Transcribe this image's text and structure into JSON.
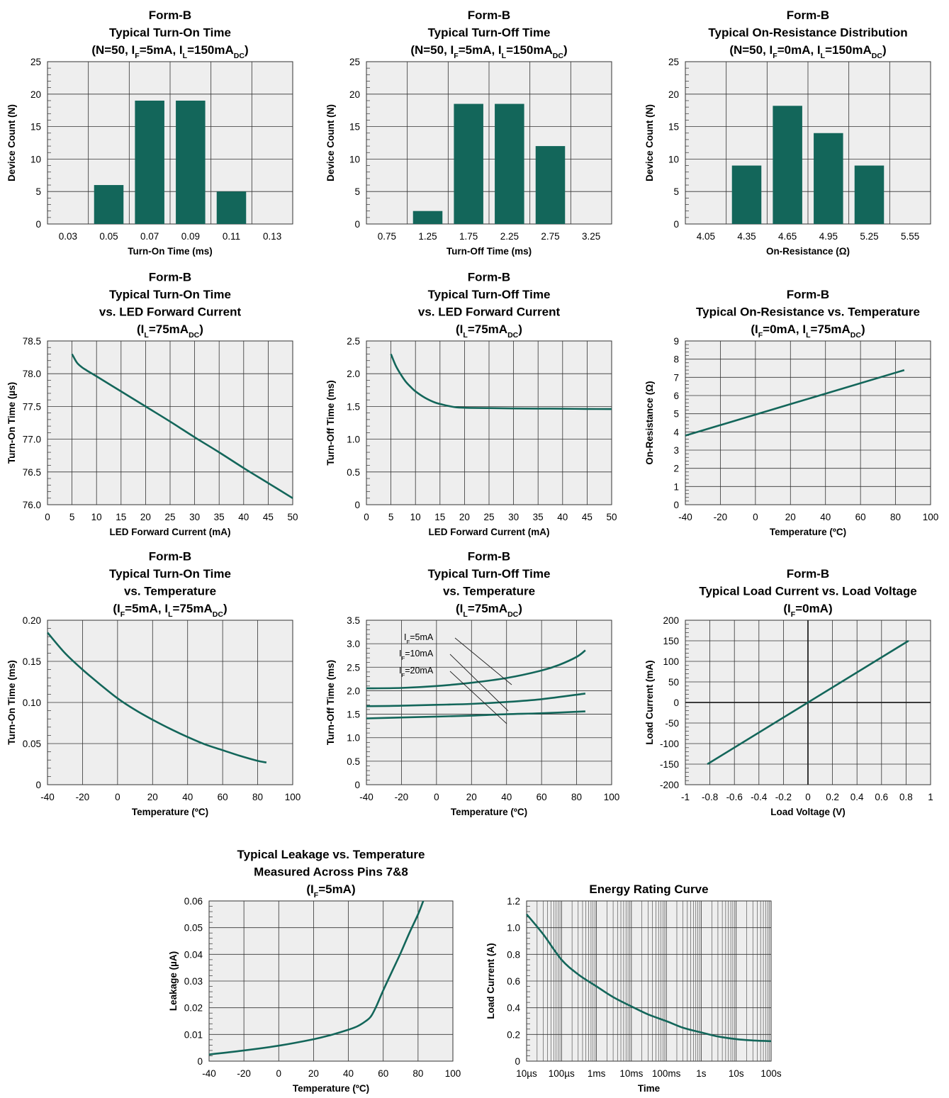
{
  "chart_data": [
    {
      "id": "c1",
      "type": "bar",
      "title": [
        "Form-B",
        "Typical Turn-On Time",
        "(N=50, I|F|=5mA, I|L|=150mA|DC|)"
      ],
      "xlabel": "Turn-On Time (ms)",
      "ylabel": "Device Count (N)",
      "categories": [
        "0.03",
        "0.05",
        "0.07",
        "0.09",
        "0.11",
        "0.13"
      ],
      "values": [
        0,
        6,
        19,
        19,
        5,
        0
      ],
      "ylim": [
        0,
        25
      ],
      "yticks": [
        0,
        5,
        10,
        15,
        20,
        25
      ],
      "grid": true
    },
    {
      "id": "c2",
      "type": "bar",
      "title": [
        "Form-B",
        "Typical Turn-Off Time",
        "(N=50, I|F|=5mA, I|L|=150mA|DC|)"
      ],
      "xlabel": "Turn-Off Time (ms)",
      "ylabel": "Device Count (N)",
      "categories": [
        "0.75",
        "1.25",
        "1.75",
        "2.25",
        "2.75",
        "3.25"
      ],
      "values": [
        0,
        2,
        18.5,
        18.5,
        12,
        0
      ],
      "ylim": [
        0,
        25
      ],
      "yticks": [
        0,
        5,
        10,
        15,
        20,
        25
      ],
      "grid": true
    },
    {
      "id": "c3",
      "type": "bar",
      "title": [
        "Form-B",
        "Typical On-Resistance Distribution",
        "(N=50, I|F|=0mA, I|L|=150mA|DC|)"
      ],
      "xlabel": "On-Resistance (Ω)",
      "ylabel": "Device Count (N)",
      "categories": [
        "4.05",
        "4.35",
        "4.65",
        "4.95",
        "5.25",
        "5.55"
      ],
      "values": [
        0,
        9,
        18.2,
        14,
        9,
        0
      ],
      "ylim": [
        0,
        25
      ],
      "yticks": [
        0,
        5,
        10,
        15,
        20,
        25
      ],
      "grid": true
    },
    {
      "id": "c4",
      "type": "line",
      "title": [
        "Form-B",
        "Typical Turn-On Time",
        "vs. LED Forward Current",
        "(I|L|=75mA|DC|)"
      ],
      "xlabel": "LED Forward Current (mA)",
      "ylabel": "Turn-On Time (µs)",
      "xlim": [
        0,
        50
      ],
      "ylim": [
        76.0,
        78.5
      ],
      "xticks": [
        0,
        5,
        10,
        15,
        20,
        25,
        30,
        35,
        40,
        45,
        50
      ],
      "yticks": [
        "76.0",
        "76.5",
        "77.0",
        "77.5",
        "78.0",
        "78.5"
      ],
      "series": [
        {
          "x": [
            5,
            6,
            7,
            8,
            10,
            15,
            20,
            25,
            30,
            35,
            40,
            45,
            50
          ],
          "y": [
            78.3,
            78.17,
            78.1,
            78.05,
            77.96,
            77.73,
            77.5,
            77.27,
            77.03,
            76.8,
            76.56,
            76.33,
            76.1
          ]
        }
      ],
      "grid": true
    },
    {
      "id": "c5",
      "type": "line",
      "title": [
        "Form-B",
        "Typical Turn-Off Time",
        "vs. LED Forward Current",
        "(I|L|=75mA|DC|)"
      ],
      "xlabel": "LED Forward Current (mA)",
      "ylabel": "Turn-Off Time (ms)",
      "xlim": [
        0,
        50
      ],
      "ylim": [
        0,
        2.5
      ],
      "xticks": [
        0,
        5,
        10,
        15,
        20,
        25,
        30,
        35,
        40,
        45,
        50
      ],
      "yticks": [
        "0",
        "0.5",
        "1.0",
        "1.5",
        "2.0",
        "2.5"
      ],
      "series": [
        {
          "x": [
            5,
            6,
            7,
            8,
            9,
            10,
            12,
            14,
            16,
            18,
            20,
            25,
            30,
            35,
            40,
            45,
            50
          ],
          "y": [
            2.3,
            2.12,
            1.99,
            1.88,
            1.8,
            1.73,
            1.63,
            1.56,
            1.52,
            1.49,
            1.48,
            1.475,
            1.47,
            1.468,
            1.465,
            1.462,
            1.46
          ]
        }
      ],
      "grid": true
    },
    {
      "id": "c6",
      "type": "line",
      "title": [
        "Form-B",
        "Typical On-Resistance vs. Temperature",
        "(I|F|=0mA, I|L|=75mA|DC|)"
      ],
      "xlabel": "Temperature (ºC)",
      "ylabel": "On-Resistance (Ω)",
      "xlim": [
        -40,
        100
      ],
      "ylim": [
        0,
        9
      ],
      "xticks": [
        -40,
        -20,
        0,
        20,
        40,
        60,
        80,
        100
      ],
      "yticks": [
        0,
        1,
        2,
        3,
        4,
        5,
        6,
        7,
        8,
        9
      ],
      "series": [
        {
          "x": [
            -40,
            85
          ],
          "y": [
            3.8,
            7.4
          ]
        }
      ],
      "grid": true
    },
    {
      "id": "c7",
      "type": "line",
      "title": [
        "Form-B",
        "Typical Turn-On Time",
        "vs. Temperature",
        "(I|F|=5mA, I|L|=75mA|DC|)"
      ],
      "xlabel": "Temperature (ºC)",
      "ylabel": "Turn-On Time (ms)",
      "xlim": [
        -40,
        100
      ],
      "ylim": [
        0,
        0.2
      ],
      "xticks": [
        -40,
        -20,
        0,
        20,
        40,
        60,
        80,
        100
      ],
      "yticks": [
        "0",
        "0.05",
        "0.10",
        "0.15",
        "0.20"
      ],
      "series": [
        {
          "x": [
            -40,
            -30,
            -20,
            -10,
            0,
            10,
            20,
            30,
            40,
            50,
            60,
            70,
            80,
            85
          ],
          "y": [
            0.185,
            0.16,
            0.14,
            0.122,
            0.105,
            0.091,
            0.079,
            0.068,
            0.058,
            0.049,
            0.042,
            0.035,
            0.029,
            0.027
          ]
        }
      ],
      "grid": true
    },
    {
      "id": "c8",
      "type": "line",
      "title": [
        "Form-B",
        "Typical Turn-Off Time",
        "vs. Temperature",
        "(I|L|=75mA|DC|)"
      ],
      "xlabel": "Temperature (ºC)",
      "ylabel": "Turn-Off Time (ms)",
      "xlim": [
        -40,
        100
      ],
      "ylim": [
        0,
        3.5
      ],
      "xticks": [
        -40,
        -20,
        0,
        20,
        40,
        60,
        80,
        100
      ],
      "yticks": [
        "0",
        "0.5",
        "1.0",
        "1.5",
        "2.0",
        "2.5",
        "3.0",
        "3.5"
      ],
      "series": [
        {
          "name": "I|F|=5mA",
          "x": [
            -40,
            -20,
            0,
            20,
            40,
            60,
            70,
            80,
            85
          ],
          "y": [
            2.05,
            2.06,
            2.1,
            2.17,
            2.27,
            2.43,
            2.55,
            2.72,
            2.86
          ]
        },
        {
          "name": "I|F|=10mA",
          "x": [
            -40,
            -20,
            0,
            20,
            40,
            60,
            85
          ],
          "y": [
            1.67,
            1.68,
            1.7,
            1.72,
            1.76,
            1.82,
            1.94
          ]
        },
        {
          "name": "I|F|=20mA",
          "x": [
            -40,
            -20,
            0,
            20,
            40,
            60,
            85
          ],
          "y": [
            1.41,
            1.43,
            1.45,
            1.47,
            1.5,
            1.52,
            1.56
          ]
        }
      ],
      "grid": true
    },
    {
      "id": "c9",
      "type": "line",
      "title": [
        "Form-B",
        "Typical Load Current vs. Load Voltage",
        "(I|F|=0mA)"
      ],
      "xlabel": "Load Voltage (V)",
      "ylabel": "Load Current (mA)",
      "xlim": [
        -1,
        1
      ],
      "ylim": [
        -200,
        200
      ],
      "xticks": [
        "-1",
        "-0.8",
        "-0.6",
        "-0.4",
        "-0.2",
        "0",
        "0.2",
        "0.4",
        "0.6",
        "0.8",
        "1"
      ],
      "yticks": [
        -200,
        -150,
        -100,
        -50,
        0,
        50,
        100,
        150,
        200
      ],
      "series": [
        {
          "x": [
            -0.82,
            0.82
          ],
          "y": [
            -150,
            150
          ]
        }
      ],
      "grid": true
    },
    {
      "id": "c10",
      "type": "line",
      "title": [
        "Typical Leakage vs. Temperature",
        "Measured Across Pins 7&8",
        "(I|F|=5mA)"
      ],
      "xlabel": "Temperature (ºC)",
      "ylabel": "Leakage (µA)",
      "xlim": [
        -40,
        100
      ],
      "ylim": [
        0,
        0.06
      ],
      "xticks": [
        -40,
        -20,
        0,
        20,
        40,
        60,
        80,
        100
      ],
      "yticks": [
        "0",
        "0.01",
        "0.02",
        "0.03",
        "0.04",
        "0.05",
        "0.06"
      ],
      "series": [
        {
          "x": [
            -40,
            -20,
            0,
            20,
            30,
            40,
            45,
            50,
            53,
            56,
            60,
            65,
            70,
            75,
            80,
            83
          ],
          "y": [
            0.0025,
            0.004,
            0.0058,
            0.0082,
            0.0098,
            0.0118,
            0.013,
            0.015,
            0.0168,
            0.0205,
            0.0265,
            0.0335,
            0.0405,
            0.048,
            0.055,
            0.06
          ]
        }
      ],
      "grid": true
    },
    {
      "id": "c11",
      "type": "line",
      "xscale": "log",
      "title": [
        "Energy Rating Curve"
      ],
      "xlabel": "Time",
      "ylabel": "Load Current (A)",
      "xlim": [
        "10µs",
        "100s"
      ],
      "ylim": [
        0,
        1.2
      ],
      "xticks": [
        "10µs",
        "100µs",
        "1ms",
        "10ms",
        "100ms",
        "1s",
        "10s",
        "100s"
      ],
      "yticks": [
        "0",
        "0.2",
        "0.4",
        "0.6",
        "0.8",
        "1.0",
        "1.2"
      ],
      "series": [
        {
          "x": [
            "10µs",
            "30µs",
            "100µs",
            "300µs",
            "1ms",
            "3ms",
            "10ms",
            "30ms",
            "100ms",
            "300ms",
            "1s",
            "3s",
            "10s",
            "30s",
            "100s"
          ],
          "y": [
            1.1,
            0.95,
            0.76,
            0.65,
            0.56,
            0.48,
            0.41,
            0.35,
            0.3,
            0.25,
            0.215,
            0.185,
            0.165,
            0.155,
            0.15
          ]
        }
      ],
      "grid": true
    }
  ]
}
